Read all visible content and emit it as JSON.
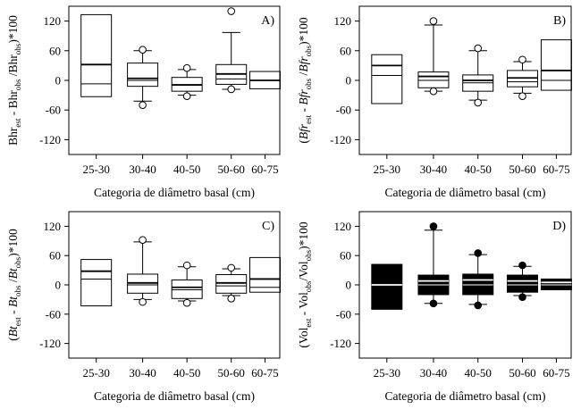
{
  "chart_data": [
    {
      "id": "A",
      "type": "boxplot",
      "panel_label": "A)",
      "xlabel": "Categoria de diâmetro basal (cm)",
      "ylabel": {
        "base": "(",
        "parts": [
          [
            "Bhr",
            "est",
            "normal"
          ],
          [
            " - ",
            "",
            "normal"
          ],
          [
            "Bhr",
            "obs",
            "normal"
          ],
          [
            " /",
            "",
            "normal"
          ],
          [
            "Bhr",
            "obs",
            "normal"
          ],
          [
            ")*100",
            "",
            "normal"
          ]
        ]
      },
      "ylim": [
        -150,
        150
      ],
      "yticks": [
        -120,
        -60,
        0,
        60,
        120
      ],
      "categories": [
        "25-30",
        "30-40",
        "40-50",
        "50-60",
        "60-75"
      ],
      "fill": "none",
      "boxes": [
        {
          "q1": -33,
          "median": -7,
          "mean": 32,
          "q3": 133,
          "wlo": null,
          "whi": null,
          "outliers": []
        },
        {
          "q1": -12,
          "median": 0,
          "mean": 4,
          "q3": 35,
          "wlo": -42,
          "whi": 60,
          "outliers": [
            -50,
            62
          ]
        },
        {
          "q1": -22,
          "median": -10,
          "mean": -9,
          "q3": 6,
          "wlo": -30,
          "whi": 22,
          "outliers": [
            -32,
            25
          ]
        },
        {
          "q1": -8,
          "median": 3,
          "mean": 13,
          "q3": 32,
          "wlo": -18,
          "whi": 97,
          "outliers": [
            -18,
            140
          ]
        },
        {
          "q1": -17,
          "median": 0,
          "mean": 0,
          "q3": 18,
          "wlo": null,
          "whi": null,
          "outliers": []
        }
      ]
    },
    {
      "id": "B",
      "type": "boxplot",
      "panel_label": "B)",
      "xlabel": "Categoria de diâmetro basal (cm)",
      "ylabel": {
        "parts": [
          [
            "(",
            "",
            "normal"
          ],
          [
            "Bfr",
            "est",
            "italic"
          ],
          [
            " - ",
            "",
            "normal"
          ],
          [
            "Bfr",
            "obs",
            "italic"
          ],
          [
            " /",
            "",
            "normal"
          ],
          [
            "Bfr",
            "obs",
            "italic"
          ],
          [
            ")*100",
            "",
            "normal"
          ]
        ]
      },
      "ylim": [
        -150,
        150
      ],
      "yticks": [
        -120,
        -60,
        0,
        60,
        120
      ],
      "categories": [
        "25-30",
        "30-40",
        "40-50",
        "50-60",
        "60-75"
      ],
      "fill": "none",
      "boxes": [
        {
          "q1": -47,
          "median": 10,
          "mean": 30,
          "q3": 52,
          "wlo": null,
          "whi": null,
          "outliers": []
        },
        {
          "q1": -15,
          "median": 0,
          "mean": 8,
          "q3": 17,
          "wlo": -22,
          "whi": 112,
          "outliers": [
            -22,
            120
          ]
        },
        {
          "q1": -22,
          "median": -5,
          "mean": 0,
          "q3": 11,
          "wlo": -40,
          "whi": 60,
          "outliers": [
            -45,
            65
          ]
        },
        {
          "q1": -13,
          "median": -3,
          "mean": 5,
          "q3": 20,
          "wlo": -26,
          "whi": 38,
          "outliers": [
            -32,
            42
          ]
        },
        {
          "q1": -20,
          "median": 0,
          "mean": 20,
          "q3": 82,
          "wlo": null,
          "whi": null,
          "outliers": []
        }
      ]
    },
    {
      "id": "C",
      "type": "boxplot",
      "panel_label": "C)",
      "xlabel": "Categoria de diâmetro basal (cm)",
      "ylabel": {
        "parts": [
          [
            "(",
            "",
            "normal"
          ],
          [
            "Bt",
            "est",
            "italic"
          ],
          [
            " - ",
            "",
            "normal"
          ],
          [
            "Bt",
            "obs",
            "italic"
          ],
          [
            " /",
            "",
            "normal"
          ],
          [
            "Bt",
            "obs",
            "italic"
          ],
          [
            ")*100",
            "",
            "normal"
          ]
        ]
      },
      "ylim": [
        -150,
        150
      ],
      "yticks": [
        -120,
        -60,
        0,
        60,
        120
      ],
      "categories": [
        "25-30",
        "30-40",
        "40-50",
        "50-60",
        "60-75"
      ],
      "fill": "none",
      "boxes": [
        {
          "q1": -43,
          "median": 12,
          "mean": 28,
          "q3": 52,
          "wlo": null,
          "whi": null,
          "outliers": []
        },
        {
          "q1": -17,
          "median": 0,
          "mean": 4,
          "q3": 22,
          "wlo": -30,
          "whi": 88,
          "outliers": [
            -35,
            92
          ]
        },
        {
          "q1": -28,
          "median": -10,
          "mean": -5,
          "q3": 10,
          "wlo": -33,
          "whi": 37,
          "outliers": [
            -37,
            40
          ]
        },
        {
          "q1": -17,
          "median": -2,
          "mean": 4,
          "q3": 21,
          "wlo": -22,
          "whi": 33,
          "outliers": [
            -28,
            35
          ]
        },
        {
          "q1": -15,
          "median": -5,
          "mean": 12,
          "q3": 56,
          "wlo": null,
          "whi": null,
          "outliers": []
        }
      ]
    },
    {
      "id": "D",
      "type": "boxplot",
      "panel_label": "D)",
      "xlabel": "Categoria de diâmetro basal (cm)",
      "ylabel": {
        "parts": [
          [
            "(Vol",
            "est",
            "normal"
          ],
          [
            " - Vol",
            "obs",
            "normal"
          ],
          [
            "/Vol",
            "obs",
            "normal"
          ],
          [
            ")*100",
            "",
            "normal"
          ]
        ]
      },
      "ylim": [
        -150,
        150
      ],
      "yticks": [
        -120,
        -60,
        0,
        60,
        120
      ],
      "categories": [
        "25-30",
        "30-40",
        "40-50",
        "50-60",
        "60-75"
      ],
      "fill": "#000000",
      "boxes": [
        {
          "q1": -50,
          "median": 0,
          "mean": 0,
          "q3": 42,
          "wlo": null,
          "whi": null,
          "outliers": []
        },
        {
          "q1": -20,
          "median": 0,
          "mean": 8,
          "q3": 20,
          "wlo": -38,
          "whi": 112,
          "outliers": [
            -38,
            120
          ]
        },
        {
          "q1": -20,
          "median": 0,
          "mean": 10,
          "q3": 22,
          "wlo": -40,
          "whi": 62,
          "outliers": [
            -42,
            65
          ]
        },
        {
          "q1": -15,
          "median": 0,
          "mean": 8,
          "q3": 20,
          "wlo": -22,
          "whi": 38,
          "outliers": [
            -25,
            40
          ]
        },
        {
          "q1": -10,
          "median": 0,
          "mean": 5,
          "q3": 12,
          "wlo": null,
          "whi": null,
          "outliers": []
        }
      ]
    }
  ]
}
